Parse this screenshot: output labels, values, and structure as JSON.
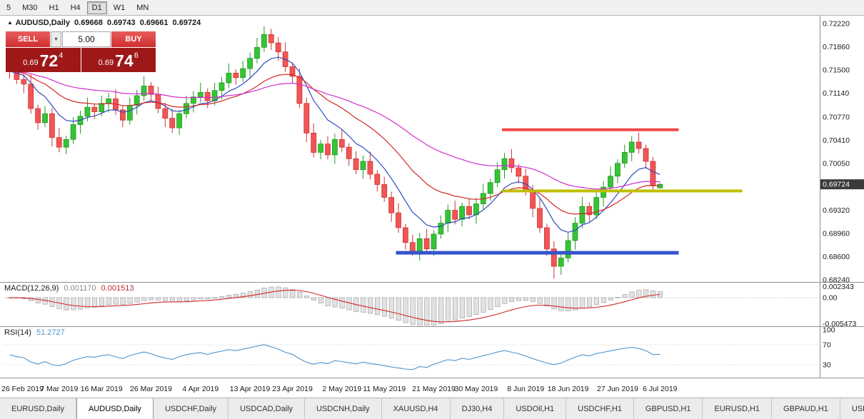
{
  "toolbar": {
    "buttons": [
      {
        "label": "5",
        "active": false
      },
      {
        "label": "M30",
        "active": false
      },
      {
        "label": "H1",
        "active": false
      },
      {
        "label": "H4",
        "active": false
      },
      {
        "label": "D1",
        "active": true
      },
      {
        "label": "W1",
        "active": false
      },
      {
        "label": "MN",
        "active": false
      }
    ]
  },
  "chart": {
    "header": {
      "marker": "▲",
      "symbol": "AUDUSD,Daily",
      "open": "0.69668",
      "high": "0.69743",
      "low": "0.69661",
      "close": "0.69724"
    },
    "trade_panel": {
      "sell_label": "SELL",
      "buy_label": "BUY",
      "volume": "5.00",
      "dropdown_icon": "▼",
      "sell_price": {
        "small": "0.69",
        "big": "72",
        "sup": "4"
      },
      "buy_price": {
        "small": "0.69",
        "big": "74",
        "sup": "6"
      }
    },
    "macd": {
      "name": "MACD(12,26,9)",
      "value_main": "0.001170",
      "value_signal": "0.001513"
    },
    "rsi": {
      "name": "RSI(14)",
      "value": "51.2727"
    }
  },
  "colors": {
    "candle_up": "#35c435",
    "candle_up_stroke": "#249a24",
    "candle_down": "#f15555",
    "candle_down_stroke": "#cf3434",
    "ma_fast": "#2e4bbf",
    "ma_mid": "#d22828",
    "ma_slow": "#cf2ecf",
    "level_resistance": "#ef4848",
    "level_breakout": "#bfbf00",
    "level_support": "#3355cc",
    "macd_hist_fill": "#e2e2e2",
    "macd_hist_stroke": "#9a9a9a",
    "macd_signal": "#d22828",
    "rsi_line": "#4f94cd",
    "price_marker_bg": "#3a3a3a",
    "trade_red": "#d83232",
    "trade_dark_red": "#9e1818"
  },
  "chart_data": {
    "type": "candlestick",
    "symbol": "AUDUSD",
    "timeframe": "Daily",
    "price_range": [
      0.68207,
      0.72342
    ],
    "price_ticks": [
      "0.72220",
      "0.71860",
      "0.71500",
      "0.71140",
      "0.70770",
      "0.70410",
      "0.70050",
      "0.69320",
      "0.68960",
      "0.68600",
      "0.68240"
    ],
    "current_price": "0.69724",
    "candles": [
      [
        0.7156,
        0.7162,
        0.7137,
        0.7148
      ],
      [
        0.7148,
        0.716,
        0.7128,
        0.7135
      ],
      [
        0.7135,
        0.7144,
        0.7114,
        0.7128
      ],
      [
        0.7128,
        0.7143,
        0.7082,
        0.709
      ],
      [
        0.709,
        0.7096,
        0.7057,
        0.7068
      ],
      [
        0.7068,
        0.7094,
        0.7061,
        0.7082
      ],
      [
        0.7082,
        0.7091,
        0.7031,
        0.7045
      ],
      [
        0.7045,
        0.706,
        0.7022,
        0.703
      ],
      [
        0.703,
        0.7048,
        0.7019,
        0.7042
      ],
      [
        0.7042,
        0.7077,
        0.7035,
        0.7065
      ],
      [
        0.7065,
        0.7087,
        0.7051,
        0.7078
      ],
      [
        0.7078,
        0.7107,
        0.707,
        0.7092
      ],
      [
        0.7092,
        0.7098,
        0.7074,
        0.7085
      ],
      [
        0.7085,
        0.711,
        0.7078,
        0.7098
      ],
      [
        0.7098,
        0.7114,
        0.7084,
        0.7105
      ],
      [
        0.7105,
        0.712,
        0.708,
        0.7088
      ],
      [
        0.7088,
        0.7094,
        0.7061,
        0.7072
      ],
      [
        0.7072,
        0.7107,
        0.7065,
        0.7095
      ],
      [
        0.7095,
        0.7119,
        0.7081,
        0.711
      ],
      [
        0.711,
        0.714,
        0.7102,
        0.7125
      ],
      [
        0.7125,
        0.7131,
        0.7101,
        0.7112
      ],
      [
        0.7112,
        0.7124,
        0.7083,
        0.709
      ],
      [
        0.709,
        0.7099,
        0.7061,
        0.7075
      ],
      [
        0.7075,
        0.709,
        0.7052,
        0.706
      ],
      [
        0.706,
        0.7088,
        0.7049,
        0.7082
      ],
      [
        0.7082,
        0.711,
        0.7075,
        0.7098
      ],
      [
        0.7098,
        0.7117,
        0.7084,
        0.7108
      ],
      [
        0.7108,
        0.713,
        0.71,
        0.7115
      ],
      [
        0.7115,
        0.7121,
        0.7091,
        0.7102
      ],
      [
        0.7102,
        0.713,
        0.7095,
        0.7118
      ],
      [
        0.7118,
        0.7139,
        0.7104,
        0.713
      ],
      [
        0.713,
        0.716,
        0.7122,
        0.7145
      ],
      [
        0.7145,
        0.7151,
        0.7127,
        0.7138
      ],
      [
        0.7138,
        0.7164,
        0.7131,
        0.7152
      ],
      [
        0.7152,
        0.7177,
        0.7138,
        0.7168
      ],
      [
        0.7168,
        0.72,
        0.716,
        0.7185
      ],
      [
        0.7185,
        0.7218,
        0.7178,
        0.7205
      ],
      [
        0.7205,
        0.7214,
        0.7181,
        0.7192
      ],
      [
        0.7192,
        0.7201,
        0.7164,
        0.7178
      ],
      [
        0.7178,
        0.7193,
        0.7147,
        0.7155
      ],
      [
        0.7155,
        0.7161,
        0.7129,
        0.714
      ],
      [
        0.714,
        0.7152,
        0.7091,
        0.7098
      ],
      [
        0.7098,
        0.7107,
        0.7038,
        0.7052
      ],
      [
        0.7052,
        0.7067,
        0.7014,
        0.7022
      ],
      [
        0.7022,
        0.7041,
        0.7011,
        0.7035
      ],
      [
        0.7035,
        0.7047,
        0.7011,
        0.7018
      ],
      [
        0.7018,
        0.7051,
        0.7004,
        0.7042
      ],
      [
        0.7042,
        0.7057,
        0.7022,
        0.703
      ],
      [
        0.703,
        0.7036,
        0.7001,
        0.7012
      ],
      [
        0.7012,
        0.7024,
        0.6988,
        0.6995
      ],
      [
        0.6995,
        0.7017,
        0.6981,
        0.7008
      ],
      [
        0.7008,
        0.7023,
        0.698,
        0.6988
      ],
      [
        0.6988,
        0.6994,
        0.6961,
        0.6972
      ],
      [
        0.6972,
        0.6984,
        0.6945,
        0.6952
      ],
      [
        0.6952,
        0.6961,
        0.6914,
        0.6928
      ],
      [
        0.6928,
        0.6943,
        0.6897,
        0.6905
      ],
      [
        0.6905,
        0.6911,
        0.6871,
        0.6882
      ],
      [
        0.6882,
        0.6894,
        0.6861,
        0.6868
      ],
      [
        0.6868,
        0.6897,
        0.6854,
        0.6888
      ],
      [
        0.6888,
        0.6903,
        0.6864,
        0.6872
      ],
      [
        0.6872,
        0.6901,
        0.6861,
        0.6895
      ],
      [
        0.6895,
        0.6924,
        0.6888,
        0.6912
      ],
      [
        0.6912,
        0.6941,
        0.6898,
        0.6932
      ],
      [
        0.6932,
        0.6947,
        0.691,
        0.6918
      ],
      [
        0.6918,
        0.6944,
        0.6907,
        0.6938
      ],
      [
        0.6938,
        0.695,
        0.6918,
        0.6925
      ],
      [
        0.6925,
        0.6951,
        0.6911,
        0.6942
      ],
      [
        0.6942,
        0.6973,
        0.6934,
        0.6958
      ],
      [
        0.6958,
        0.6981,
        0.6947,
        0.6975
      ],
      [
        0.6975,
        0.7007,
        0.6968,
        0.6995
      ],
      [
        0.6995,
        0.7021,
        0.6981,
        0.7012
      ],
      [
        0.7012,
        0.7027,
        0.699,
        0.6998
      ],
      [
        0.6998,
        0.7004,
        0.6974,
        0.6985
      ],
      [
        0.6985,
        0.6997,
        0.6955,
        0.6962
      ],
      [
        0.6962,
        0.6971,
        0.6921,
        0.6935
      ],
      [
        0.6935,
        0.695,
        0.6897,
        0.6905
      ],
      [
        0.6905,
        0.6911,
        0.6861,
        0.6872
      ],
      [
        0.6872,
        0.6884,
        0.6826,
        0.6845
      ],
      [
        0.6845,
        0.6864,
        0.6832,
        0.6858
      ],
      [
        0.6858,
        0.6897,
        0.6851,
        0.6885
      ],
      [
        0.6885,
        0.6921,
        0.6871,
        0.6912
      ],
      [
        0.6912,
        0.6953,
        0.6904,
        0.6938
      ],
      [
        0.6938,
        0.6944,
        0.6914,
        0.6925
      ],
      [
        0.6925,
        0.6964,
        0.6918,
        0.6952
      ],
      [
        0.6952,
        0.6977,
        0.6938,
        0.6968
      ],
      [
        0.6968,
        0.7,
        0.696,
        0.6985
      ],
      [
        0.6985,
        0.7011,
        0.6974,
        0.7005
      ],
      [
        0.7005,
        0.7034,
        0.6998,
        0.7022
      ],
      [
        0.7022,
        0.7047,
        0.7008,
        0.7038
      ],
      [
        0.7038,
        0.7053,
        0.702,
        0.7028
      ],
      [
        0.7028,
        0.7034,
        0.6997,
        0.7008
      ],
      [
        0.7008,
        0.7015,
        0.6962,
        0.697
      ],
      [
        0.69668,
        0.69743,
        0.69661,
        0.69724
      ]
    ],
    "date_labels": [
      {
        "label": "26 Feb 2019",
        "idx": 0
      },
      {
        "label": "7 Mar 2019",
        "idx": 7
      },
      {
        "label": "16 Mar 2019",
        "idx": 13
      },
      {
        "label": "26 Mar 2019",
        "idx": 20
      },
      {
        "label": "4 Apr 2019",
        "idx": 27
      },
      {
        "label": "13 Apr 2019",
        "idx": 34
      },
      {
        "label": "23 Apr 2019",
        "idx": 40
      },
      {
        "label": "2 May 2019",
        "idx": 47
      },
      {
        "label": "11 May 2019",
        "idx": 53
      },
      {
        "label": "21 May 2019",
        "idx": 60
      },
      {
        "label": "30 May 2019",
        "idx": 66
      },
      {
        "label": "8 Jun 2019",
        "idx": 73
      },
      {
        "label": "18 Jun 2019",
        "idx": 79
      },
      {
        "label": "27 Jun 2019",
        "idx": 86
      },
      {
        "label": "6 Jul 2019",
        "idx": 92
      }
    ],
    "moving_averages": [
      {
        "period": 8,
        "color_key": "ma_fast"
      },
      {
        "period": 20,
        "color_key": "ma_mid"
      },
      {
        "period": 45,
        "color_key": "ma_slow"
      }
    ],
    "levels": [
      {
        "name": "resistance",
        "price": 0.7057,
        "from_idx": 70,
        "to_idx": 95,
        "color_key": "level_resistance",
        "width": 4
      },
      {
        "name": "breakout",
        "price": 0.6962,
        "from_idx": 70,
        "to_idx": 104,
        "color_key": "level_breakout",
        "width": 4
      },
      {
        "name": "support",
        "price": 0.6866,
        "from_idx": 55,
        "to_idx": 95,
        "color_key": "level_support",
        "width": 5
      }
    ],
    "macd_axis": [
      {
        "label": "0.002343",
        "value": 0.002343
      },
      {
        "label": "0.00",
        "value": 0
      },
      {
        "label": "-0.005473",
        "value": -0.005473
      }
    ],
    "rsi_axis": [
      {
        "label": "100",
        "value": 100
      },
      {
        "label": "70",
        "value": 70
      },
      {
        "label": "30",
        "value": 30
      }
    ],
    "rsi_levels": [
      70,
      30
    ]
  },
  "tabs": {
    "scroll_icon": "◄",
    "items": [
      {
        "label": "EURUSD,Daily",
        "selected": false
      },
      {
        "label": "AUDUSD,Daily",
        "selected": true
      },
      {
        "label": "USDCHF,Daily",
        "selected": false
      },
      {
        "label": "USDCAD,Daily",
        "selected": false
      },
      {
        "label": "USDCNH,Daily",
        "selected": false
      },
      {
        "label": "XAUUSD,H4",
        "selected": false
      },
      {
        "label": "DJ30,H4",
        "selected": false
      },
      {
        "label": "USDOil,H1",
        "selected": false
      },
      {
        "label": "USDCHF,H1",
        "selected": false
      },
      {
        "label": "GBPUSD,H1",
        "selected": false
      },
      {
        "label": "EURUSD,H1",
        "selected": false
      },
      {
        "label": "GBPAUD,H1",
        "selected": false
      },
      {
        "label": "USDJP",
        "selected": false
      }
    ]
  }
}
